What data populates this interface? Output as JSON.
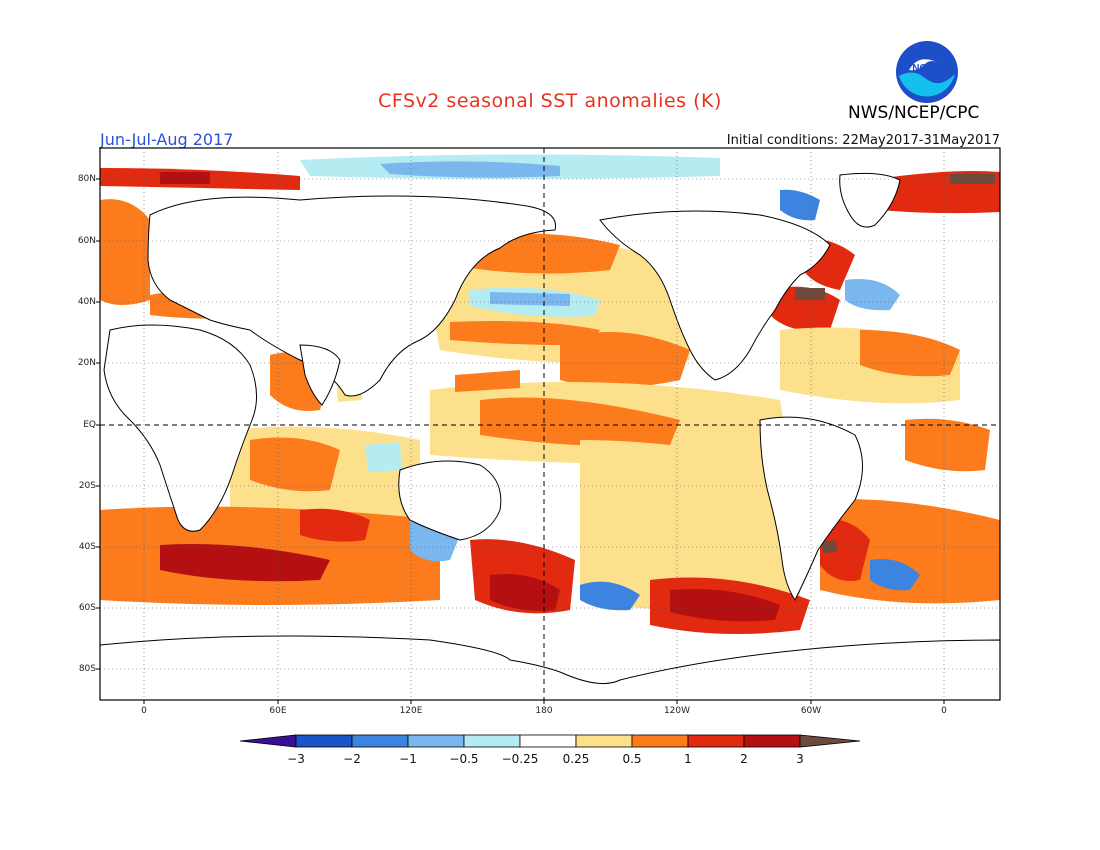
{
  "header": {
    "title": "CFSv2 seasonal SST anomalies (K)",
    "period": "Jun-Jul-Aug 2017",
    "initial_conditions": "Initial conditions: 22May2017-31May2017",
    "agency": "NWS/NCEP/CPC",
    "logo_text": "NOAA"
  },
  "map": {
    "lat_ticks": [
      "80N",
      "60N",
      "40N",
      "20N",
      "EQ",
      "20S",
      "40S",
      "60S",
      "80S"
    ],
    "lon_ticks": [
      "0",
      "60E",
      "120E",
      "180",
      "120W",
      "60W",
      "0"
    ],
    "reference_lines": [
      "EQ",
      "180"
    ]
  },
  "colorbar": {
    "labels": [
      "−3",
      "−2",
      "−1",
      "−0.5",
      "−0.25",
      "0.25",
      "0.5",
      "1",
      "2",
      "3"
    ],
    "colors": {
      "lt_-3": "#3b0f96",
      "-3_-2": "#1a54c8",
      "-2_-1": "#3d84e0",
      "-1_-0.5": "#79b7ee",
      "-0.5_-0.25": "#b4ecf2",
      "-0.25_0.25": "#ffffff",
      "0.25_0.5": "#fde08c",
      "0.5_1": "#fc7b1c",
      "1_2": "#e22a10",
      "2_3": "#b51011",
      "gt_3": "#6e4a3c"
    }
  }
}
